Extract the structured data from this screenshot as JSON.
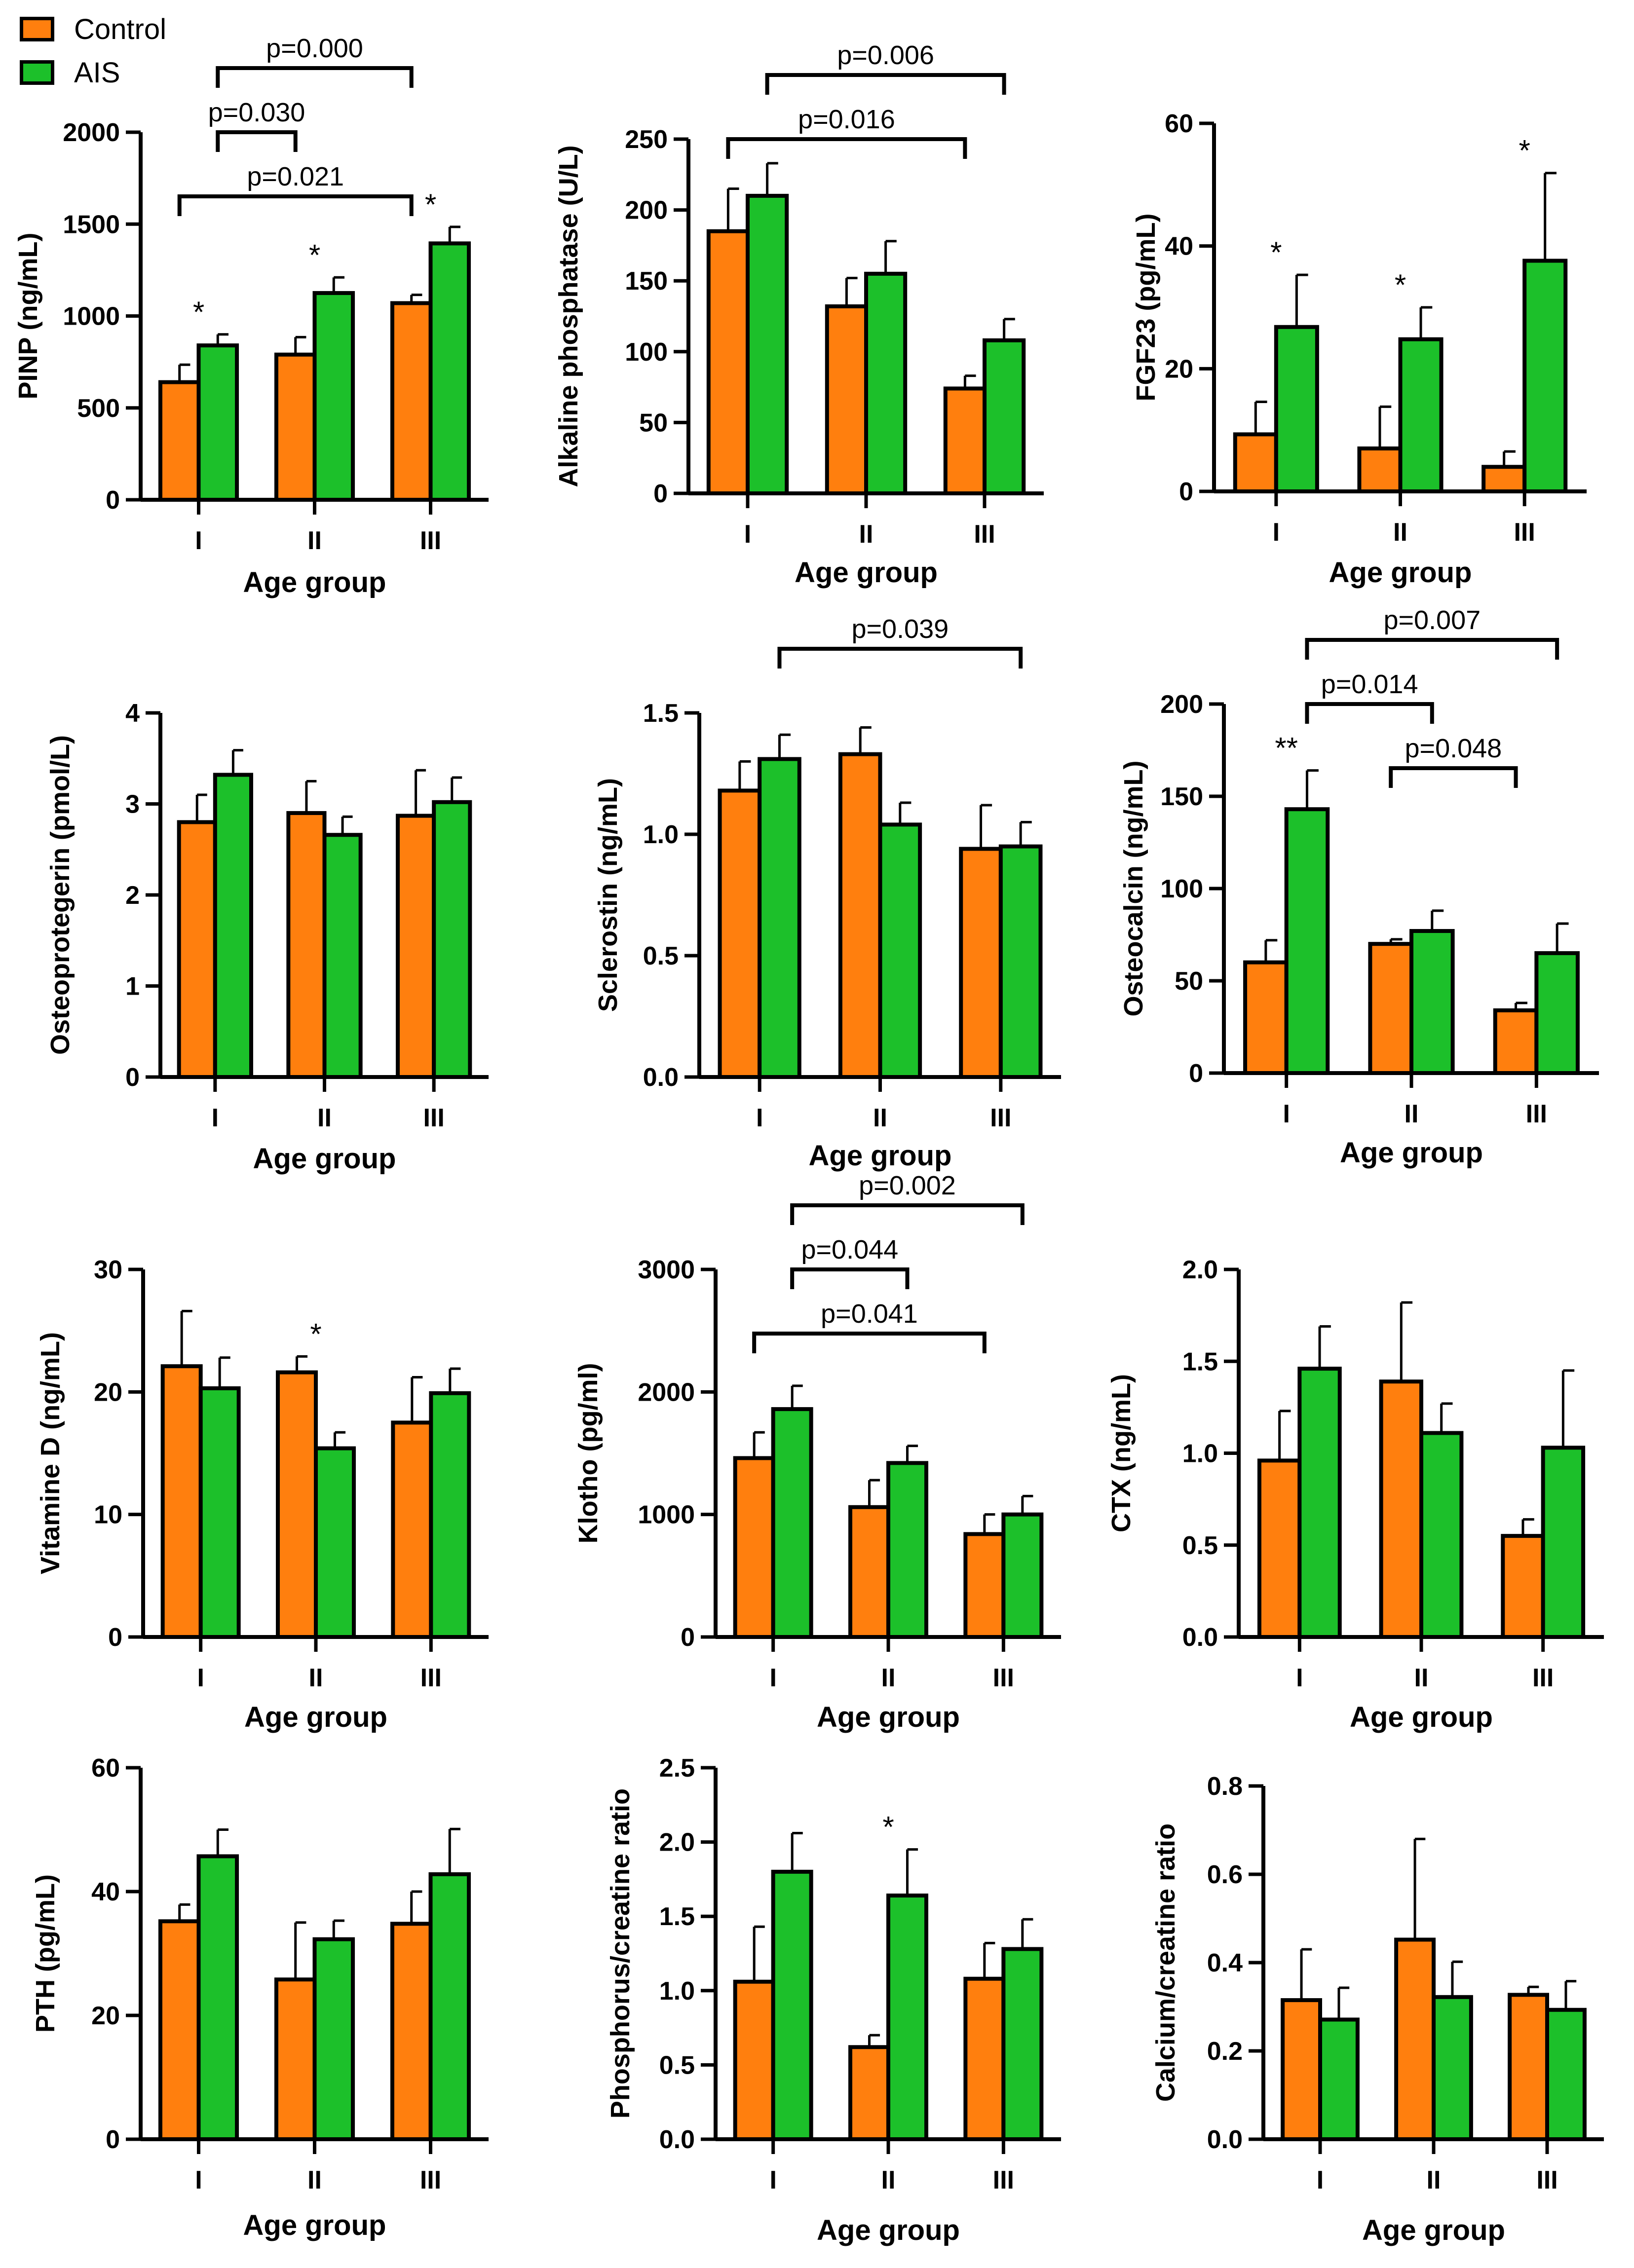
{
  "colors": {
    "control": "#FF7F0E",
    "ais": "#1CC02A",
    "axis": "#000000"
  },
  "legend": {
    "control_label": "Control",
    "ais_label": "AIS"
  },
  "chart_data": [
    {
      "type": "bar",
      "title": "",
      "xlabel": "Age group",
      "ylabel": "PINP (ng/mL)",
      "categories": [
        "I",
        "II",
        "III"
      ],
      "ylim": [
        0,
        2000
      ],
      "yticks": [
        "0",
        "500",
        "1000",
        "1500",
        "2000"
      ],
      "series": [
        {
          "name": "Control",
          "values": [
            640,
            790,
            1070
          ],
          "errors": [
            95,
            95,
            45
          ]
        },
        {
          "name": "AIS",
          "values": [
            840,
            1125,
            1395
          ],
          "errors": [
            60,
            85,
            90
          ]
        }
      ],
      "stars": [
        {
          "group": 0,
          "text": "*"
        },
        {
          "group": 1,
          "text": "*"
        },
        {
          "group": 2,
          "text": "*"
        }
      ],
      "brackets": [
        {
          "from": 1,
          "to": 4,
          "label": "p=0.000"
        },
        {
          "from": 1,
          "to": 2,
          "label": "p=0.030"
        },
        {
          "from": 0,
          "to": 4,
          "label": "p=0.021"
        }
      ]
    },
    {
      "type": "bar",
      "title": "",
      "xlabel": "Age group",
      "ylabel": "Alkaline phosphatase (U/L)",
      "categories": [
        "I",
        "II",
        "III"
      ],
      "ylim": [
        0,
        250
      ],
      "yticks": [
        "0",
        "50",
        "100",
        "150",
        "200",
        "250"
      ],
      "series": [
        {
          "name": "Control",
          "values": [
            185,
            132,
            74
          ],
          "errors": [
            30,
            20,
            9
          ]
        },
        {
          "name": "AIS",
          "values": [
            210,
            155,
            108
          ],
          "errors": [
            23,
            23,
            15
          ]
        }
      ],
      "stars": [],
      "brackets": [
        {
          "from": 1,
          "to": 5,
          "label": "p=0.006"
        },
        {
          "from": 0,
          "to": 4,
          "label": "p=0.016"
        }
      ]
    },
    {
      "type": "bar",
      "title": "",
      "xlabel": "Age group",
      "ylabel": "FGF23 (pg/mL)",
      "categories": [
        "I",
        "II",
        "III"
      ],
      "ylim": [
        0,
        60
      ],
      "yticks": [
        "0",
        "20",
        "40",
        "60"
      ],
      "series": [
        {
          "name": "Control",
          "values": [
            9.3,
            7.0,
            4.0
          ],
          "errors": [
            5.3,
            6.8,
            2.5
          ]
        },
        {
          "name": "AIS",
          "values": [
            26.8,
            24.8,
            37.6
          ],
          "errors": [
            8.5,
            5.2,
            14.3
          ]
        }
      ],
      "stars": [
        {
          "group": 0,
          "text": "*"
        },
        {
          "group": 1,
          "text": "*"
        },
        {
          "group": 2,
          "text": "*"
        }
      ],
      "brackets": []
    },
    {
      "type": "bar",
      "title": "",
      "xlabel": "Age group",
      "ylabel": "Osteoprotegerin (pmol/L)",
      "categories": [
        "I",
        "II",
        "III"
      ],
      "ylim": [
        0,
        4
      ],
      "yticks": [
        "0",
        "1",
        "2",
        "3",
        "4"
      ],
      "series": [
        {
          "name": "Control",
          "values": [
            2.8,
            2.9,
            2.87
          ],
          "errors": [
            0.3,
            0.35,
            0.5
          ]
        },
        {
          "name": "AIS",
          "values": [
            3.32,
            2.66,
            3.02
          ],
          "errors": [
            0.27,
            0.2,
            0.27
          ]
        }
      ],
      "stars": [],
      "brackets": []
    },
    {
      "type": "bar",
      "title": "",
      "xlabel": "Age group",
      "ylabel": "Sclerostin (ng/mL)",
      "categories": [
        "I",
        "II",
        "III"
      ],
      "ylim": [
        0,
        1.5
      ],
      "yticks": [
        "0.0",
        "0.5",
        "1.0",
        "1.5"
      ],
      "series": [
        {
          "name": "Control",
          "values": [
            1.18,
            1.33,
            0.94
          ],
          "errors": [
            0.12,
            0.11,
            0.18
          ]
        },
        {
          "name": "AIS",
          "values": [
            1.31,
            1.04,
            0.95
          ],
          "errors": [
            0.1,
            0.09,
            0.1
          ]
        }
      ],
      "stars": [],
      "brackets": [
        {
          "from": 1,
          "to": 5,
          "label": "p=0.039"
        }
      ]
    },
    {
      "type": "bar",
      "title": "",
      "xlabel": "Age group",
      "ylabel": "Osteocalcin (ng/mL)",
      "categories": [
        "I",
        "II",
        "III"
      ],
      "ylim": [
        0,
        200
      ],
      "yticks": [
        "0",
        "50",
        "100",
        "150",
        "200"
      ],
      "series": [
        {
          "name": "Control",
          "values": [
            60,
            70,
            34
          ],
          "errors": [
            12,
            2.5,
            4
          ]
        },
        {
          "name": "AIS",
          "values": [
            143,
            77,
            65
          ],
          "errors": [
            21,
            11,
            16
          ]
        }
      ],
      "stars": [
        {
          "group": 0,
          "text": "**"
        }
      ],
      "brackets": [
        {
          "from": 1,
          "to": 5,
          "label": "p=0.007"
        },
        {
          "from": 1,
          "to": 3,
          "label": "p=0.014"
        },
        {
          "from": 2,
          "to": 4,
          "label": "p=0.048"
        }
      ]
    },
    {
      "type": "bar",
      "title": "",
      "xlabel": "Age group",
      "ylabel": "Vitamine D (ng/mL)",
      "categories": [
        "I",
        "II",
        "III"
      ],
      "ylim": [
        0,
        30
      ],
      "yticks": [
        "0",
        "10",
        "20",
        "30"
      ],
      "series": [
        {
          "name": "Control",
          "values": [
            22.1,
            21.6,
            17.5
          ],
          "errors": [
            4.5,
            1.3,
            3.7
          ]
        },
        {
          "name": "AIS",
          "values": [
            20.3,
            15.4,
            19.9
          ],
          "errors": [
            2.5,
            1.3,
            2.0
          ]
        }
      ],
      "stars": [
        {
          "group": 1,
          "text": "*"
        }
      ],
      "brackets": []
    },
    {
      "type": "bar",
      "title": "",
      "xlabel": "Age group",
      "ylabel": "Klotho (pg/ml)",
      "categories": [
        "I",
        "II",
        "III"
      ],
      "ylim": [
        0,
        3000
      ],
      "yticks": [
        "0",
        "1000",
        "2000",
        "3000"
      ],
      "series": [
        {
          "name": "Control",
          "values": [
            1460,
            1060,
            840
          ],
          "errors": [
            210,
            220,
            160
          ]
        },
        {
          "name": "AIS",
          "values": [
            1860,
            1420,
            1000
          ],
          "errors": [
            190,
            140,
            150
          ]
        }
      ],
      "stars": [],
      "brackets": [
        {
          "from": 1,
          "to": 5,
          "label": "p=0.002"
        },
        {
          "from": 1,
          "to": 3,
          "label": "p=0.044"
        },
        {
          "from": 0,
          "to": 4,
          "label": "p=0.041"
        }
      ]
    },
    {
      "type": "bar",
      "title": "",
      "xlabel": "Age group",
      "ylabel": "CTX (ng/mL)",
      "categories": [
        "I",
        "II",
        "III"
      ],
      "ylim": [
        0,
        2.0
      ],
      "yticks": [
        "0.0",
        "0.5",
        "1.0",
        "1.5",
        "2.0"
      ],
      "series": [
        {
          "name": "Control",
          "values": [
            0.96,
            1.39,
            0.55
          ],
          "errors": [
            0.27,
            0.43,
            0.09
          ]
        },
        {
          "name": "AIS",
          "values": [
            1.46,
            1.11,
            1.03
          ],
          "errors": [
            0.23,
            0.16,
            0.42
          ]
        }
      ],
      "stars": [],
      "brackets": []
    },
    {
      "type": "bar",
      "title": "",
      "xlabel": "Age group",
      "ylabel": "PTH (pg/mL)",
      "categories": [
        "I",
        "II",
        "III"
      ],
      "ylim": [
        0,
        60
      ],
      "yticks": [
        "0",
        "20",
        "40",
        "60"
      ],
      "series": [
        {
          "name": "Control",
          "values": [
            35.2,
            25.8,
            34.8
          ],
          "errors": [
            2.7,
            9.2,
            5.2
          ]
        },
        {
          "name": "AIS",
          "values": [
            45.7,
            32.3,
            42.8
          ],
          "errors": [
            4.3,
            3.0,
            7.3
          ]
        }
      ],
      "stars": [],
      "brackets": []
    },
    {
      "type": "bar",
      "title": "",
      "xlabel": "Age group",
      "ylabel": "Phosphorus/creatine ratio",
      "categories": [
        "I",
        "II",
        "III"
      ],
      "ylim": [
        0,
        2.5
      ],
      "yticks": [
        "0.0",
        "0.5",
        "1.0",
        "1.5",
        "2.0",
        "2.5"
      ],
      "series": [
        {
          "name": "Control",
          "values": [
            1.06,
            0.62,
            1.08
          ],
          "errors": [
            0.37,
            0.08,
            0.24
          ]
        },
        {
          "name": "AIS",
          "values": [
            1.8,
            1.64,
            1.28
          ],
          "errors": [
            0.26,
            0.31,
            0.2
          ]
        }
      ],
      "stars": [
        {
          "group": 1,
          "text": "*"
        }
      ],
      "brackets": []
    },
    {
      "type": "bar",
      "title": "",
      "xlabel": "Age group",
      "ylabel": "Calcium/creatine ratio",
      "categories": [
        "I",
        "II",
        "III"
      ],
      "ylim": [
        0,
        0.8
      ],
      "yticks": [
        "0.0",
        "0.2",
        "0.4",
        "0.6",
        "0.8"
      ],
      "series": [
        {
          "name": "Control",
          "values": [
            0.315,
            0.452,
            0.327
          ],
          "errors": [
            0.115,
            0.228,
            0.018
          ]
        },
        {
          "name": "AIS",
          "values": [
            0.271,
            0.322,
            0.293
          ],
          "errors": [
            0.072,
            0.08,
            0.065
          ]
        }
      ],
      "stars": [],
      "brackets": []
    }
  ]
}
